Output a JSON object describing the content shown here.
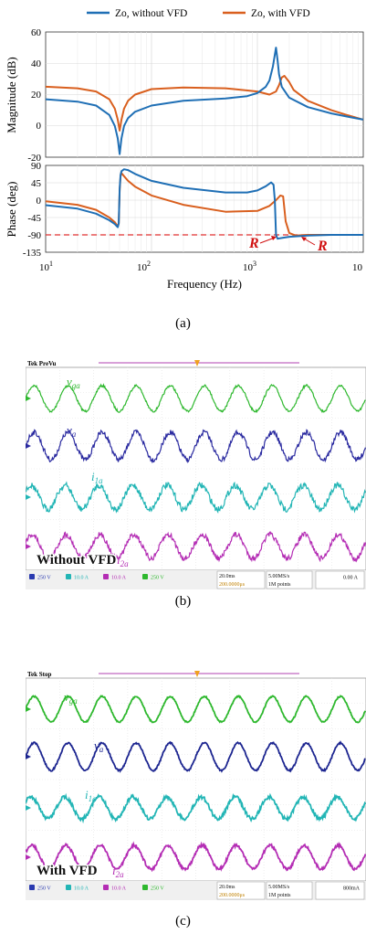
{
  "panel_a": {
    "caption": "(a)",
    "legend": [
      {
        "label": "Zo, without VFD",
        "color": "#1f6fb5"
      },
      {
        "label": "Zo, with VFD",
        "color": "#d95f1e"
      }
    ],
    "magnitude": {
      "ylabel": "Magnitude (dB)",
      "yticks": [
        "60",
        "40",
        "20",
        "0",
        "-20"
      ],
      "ylim": [
        -20,
        60
      ]
    },
    "phase": {
      "ylabel": "Phase (deg)",
      "yticks": [
        "90",
        "45",
        "0",
        "-45",
        "-90",
        "-135"
      ],
      "ylim": [
        -135,
        90
      ],
      "reference_line": -90
    },
    "xlabel": "Frequency (Hz)",
    "xticks": [
      {
        "base": "10",
        "exp": "1"
      },
      {
        "base": "10",
        "exp": "2"
      },
      {
        "base": "10",
        "exp": "3"
      },
      {
        "base": "10",
        "exp": ""
      }
    ],
    "annotations": [
      {
        "text": "R"
      },
      {
        "text": "R"
      }
    ]
  },
  "chart_data": [
    {
      "type": "line",
      "title": "",
      "xlabel": "Frequency (Hz)",
      "ylabel": "Magnitude (dB)",
      "xscale": "log",
      "xlim": [
        10,
        10000
      ],
      "ylim": [
        -20,
        60
      ],
      "grid": true,
      "legend_position": "top",
      "series": [
        {
          "name": "Zo, without VFD",
          "color": "#1f6fb5",
          "x": [
            10,
            20,
            30,
            40,
            45,
            48,
            50,
            52,
            55,
            60,
            70,
            100,
            200,
            500,
            800,
            1000,
            1200,
            1300,
            1400,
            1450,
            1500,
            1550,
            1600,
            1700,
            2000,
            3000,
            5000,
            7000,
            10000
          ],
          "y": [
            17,
            15.5,
            13,
            7,
            0,
            -8,
            -18,
            -8,
            0,
            5,
            9,
            13,
            16,
            17.5,
            19,
            21,
            25,
            29,
            38,
            44,
            50,
            42,
            33,
            25,
            18,
            12,
            8,
            6,
            4
          ]
        },
        {
          "name": "Zo, with VFD",
          "color": "#d95f1e",
          "x": [
            10,
            20,
            30,
            40,
            45,
            48,
            50,
            52,
            55,
            60,
            70,
            100,
            200,
            500,
            1000,
            1300,
            1500,
            1600,
            1700,
            1800,
            2000,
            2200,
            3000,
            5000,
            7000,
            10000
          ],
          "y": [
            25,
            24,
            22,
            17,
            11,
            4,
            -3,
            4,
            11,
            16,
            20,
            23.5,
            24.5,
            24,
            22,
            20,
            22,
            26,
            31,
            32,
            28,
            23,
            16,
            10,
            7,
            4
          ]
        }
      ]
    },
    {
      "type": "line",
      "title": "",
      "xlabel": "Frequency (Hz)",
      "ylabel": "Phase (deg)",
      "xscale": "log",
      "xlim": [
        10,
        10000
      ],
      "ylim": [
        -135,
        90
      ],
      "grid": true,
      "series": [
        {
          "name": "Zo, without VFD",
          "color": "#1f6fb5",
          "x": [
            10,
            20,
            30,
            40,
            45,
            48,
            49,
            50,
            51,
            52,
            55,
            60,
            70,
            100,
            200,
            500,
            800,
            1000,
            1200,
            1350,
            1420,
            1460,
            1500,
            1550,
            1700,
            2000,
            3000,
            5000,
            10000
          ],
          "y": [
            -13,
            -22,
            -35,
            -52,
            -62,
            -70,
            -60,
            30,
            65,
            75,
            80,
            78,
            68,
            50,
            32,
            20,
            20,
            25,
            36,
            46,
            40,
            0,
            -90,
            -100,
            -98,
            -95,
            -92,
            -90,
            -90
          ]
        },
        {
          "name": "Zo, with VFD",
          "color": "#d95f1e",
          "x": [
            10,
            20,
            30,
            40,
            45,
            48,
            49,
            50,
            51,
            52,
            55,
            60,
            70,
            100,
            200,
            500,
            1000,
            1300,
            1500,
            1650,
            1750,
            1850,
            2000,
            2300,
            3000,
            5000,
            10000
          ],
          "y": [
            -3,
            -12,
            -25,
            -45,
            -57,
            -68,
            -60,
            25,
            62,
            70,
            62,
            50,
            35,
            12,
            -12,
            -30,
            -28,
            -15,
            0,
            12,
            10,
            -55,
            -85,
            -92,
            -90,
            -90,
            -90
          ]
        }
      ]
    }
  ],
  "panel_b": {
    "caption": "(b)",
    "status": "Tek PreVu",
    "label": "Without VFD",
    "channels": [
      {
        "name": "v",
        "sub": "ga",
        "color": "#2eb82e"
      },
      {
        "name": "v",
        "sub": "a",
        "color": "#2a2aa0"
      },
      {
        "name": "i",
        "sub": "1a",
        "color": "#22b5b5"
      },
      {
        "name": "i",
        "sub": "2a",
        "color": "#b42db4"
      }
    ],
    "footer": {
      "ch1": "250 V",
      "ch2": "10.0 A",
      "ch3": "10.0 A",
      "ch4": "250 V",
      "timebase": "20.0ms",
      "sample_rate": "5.00MS/s",
      "points": "1M points",
      "trigger": "0.00 A",
      "offset": "200.0000μs"
    }
  },
  "panel_c": {
    "caption": "(c)",
    "status": "Tek Stop",
    "label": "With VFD",
    "channels": [
      {
        "name": "v",
        "sub": "ga",
        "color": "#2eb82e"
      },
      {
        "name": "v",
        "sub": "a",
        "color": "#1c2590"
      },
      {
        "name": "i",
        "sub": "1a",
        "color": "#22b5b5"
      },
      {
        "name": "i",
        "sub": "2a",
        "color": "#b42db4"
      }
    ],
    "footer": {
      "ch1": "250 V",
      "ch2": "10.0 A",
      "ch3": "10.0 A",
      "ch4": "250 V",
      "timebase": "20.0ms",
      "sample_rate": "5.00MS/s",
      "points": "1M points",
      "trigger": "800mA",
      "offset": "200.0000μs"
    }
  }
}
